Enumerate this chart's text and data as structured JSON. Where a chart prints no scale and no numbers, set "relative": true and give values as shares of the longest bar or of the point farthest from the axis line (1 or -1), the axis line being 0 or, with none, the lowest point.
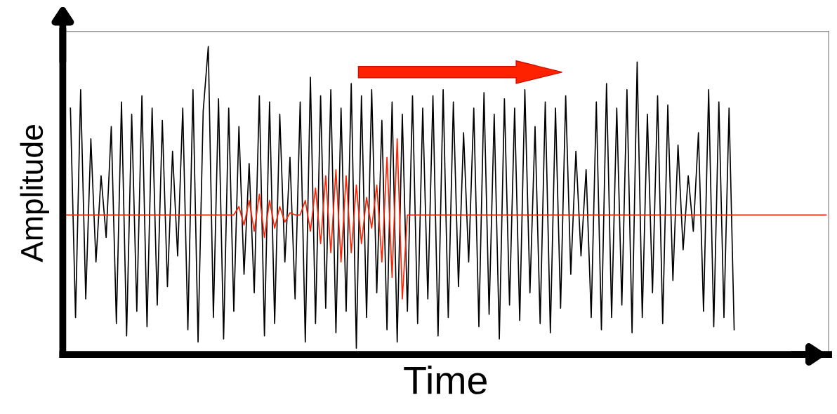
{
  "chart_data": {
    "type": "line",
    "relative": true,
    "xlabel": "Time",
    "ylabel": "Amplitude",
    "categories": [
      null,
      null,
      null,
      null,
      null,
      null,
      null,
      null,
      null,
      null,
      null,
      null,
      null,
      null,
      null,
      null,
      null,
      null,
      null,
      null,
      null,
      null,
      null,
      null,
      null,
      null,
      null,
      null,
      null,
      null,
      null,
      null,
      null,
      null,
      null,
      null,
      null,
      null,
      null,
      null,
      null,
      null,
      null,
      null,
      null,
      null,
      null,
      null,
      null,
      null,
      null,
      null,
      null,
      null,
      null,
      null,
      null,
      null,
      null,
      null,
      null,
      null,
      null,
      null,
      null,
      null,
      null,
      null,
      null,
      null,
      null,
      null,
      null,
      null,
      null,
      null,
      null,
      null,
      null,
      null,
      null,
      null,
      null,
      null,
      null,
      null,
      null,
      null,
      null,
      null,
      null,
      null,
      null,
      null,
      null,
      null,
      null,
      null,
      null,
      null,
      null,
      null,
      null,
      null,
      null,
      null,
      null,
      null,
      null,
      null,
      null,
      null,
      null,
      null,
      null,
      null,
      null,
      null,
      null,
      null,
      null,
      null,
      null,
      null,
      null,
      null,
      null,
      null,
      null,
      null,
      null,
      null,
      null,
      null,
      null,
      null,
      null,
      null,
      null,
      null,
      null,
      null,
      null,
      null,
      null,
      null,
      null,
      null,
      null,
      null
    ],
    "series": [
      {
        "color": "#000000",
        "values": [
          null,
          0.8,
          0.12,
          0.86,
          0.18,
          0.7,
          0.3,
          0.58,
          0.38,
          0.74,
          0.1,
          0.82,
          0.06,
          0.78,
          0.14,
          0.84,
          0.09,
          0.8,
          0.16,
          0.76,
          0.22,
          0.66,
          0.32,
          0.8,
          0.08,
          0.86,
          0.04,
          0.79,
          1.0,
          0.12,
          0.83,
          0.05,
          0.8,
          0.14,
          0.74,
          0.26,
          0.62,
          0.2,
          0.84,
          0.06,
          0.82,
          0.1,
          0.78,
          0.3,
          0.64,
          0.18,
          0.82,
          0.04,
          0.9,
          0.1,
          0.84,
          0.15,
          0.86,
          0.07,
          0.8,
          0.14,
          0.88,
          0.02,
          0.84,
          0.12,
          0.86,
          0.2,
          0.76,
          0.08,
          0.82,
          0.04,
          0.78,
          0.14,
          0.84,
          0.1,
          0.8,
          0.18,
          0.84,
          0.06,
          0.86,
          0.12,
          0.82,
          0.22,
          0.72,
          0.3,
          0.8,
          0.09,
          0.85,
          0.13,
          0.78,
          0.05,
          0.83,
          0.16,
          0.8,
          0.11,
          0.86,
          0.2,
          0.74,
          0.1,
          0.82,
          0.07,
          0.8,
          0.15,
          0.84,
          0.26,
          0.66,
          0.32,
          0.6,
          0.12,
          0.82,
          0.08,
          0.88,
          0.12,
          0.8,
          0.16,
          0.86,
          0.07,
          0.95,
          0.12,
          0.78,
          0.2,
          0.84,
          0.1,
          0.81,
          0.24,
          0.68,
          0.34,
          0.58,
          0.4,
          0.72,
          0.14,
          0.86,
          0.09,
          0.82,
          0.12,
          0.8,
          0.08,
          null,
          null,
          null,
          null,
          null,
          null,
          null,
          null,
          null,
          null,
          null,
          null,
          null,
          null,
          null,
          null,
          null,
          null
        ]
      },
      {
        "color": "#ff2200",
        "values": [
          0.453,
          0.453,
          0.453,
          0.453,
          0.453,
          0.453,
          0.453,
          0.453,
          0.453,
          0.453,
          0.453,
          0.453,
          0.453,
          0.453,
          0.453,
          0.453,
          0.453,
          0.453,
          0.453,
          0.453,
          0.453,
          0.453,
          0.453,
          0.453,
          0.453,
          0.453,
          0.453,
          0.453,
          0.453,
          0.453,
          0.453,
          0.453,
          0.453,
          0.453,
          0.48,
          0.42,
          0.5,
          0.4,
          0.52,
          0.38,
          0.5,
          0.41,
          0.48,
          0.43,
          0.46,
          0.453,
          0.453,
          0.5,
          0.4,
          0.54,
          0.36,
          0.58,
          0.33,
          0.6,
          0.3,
          0.58,
          0.33,
          0.55,
          0.36,
          0.51,
          0.41,
          0.55,
          0.3,
          0.64,
          0.25,
          0.7,
          0.18,
          0.453,
          0.453,
          0.453,
          0.453,
          0.453,
          0.453,
          0.453,
          0.453,
          0.453,
          0.453,
          0.453,
          0.453,
          0.453,
          0.453,
          0.453,
          0.453,
          0.453,
          0.453,
          0.453,
          0.453,
          0.453,
          0.453,
          0.453,
          0.453,
          0.453,
          0.453,
          0.453,
          0.453,
          0.453,
          0.453,
          0.453,
          0.453,
          0.453,
          0.453,
          0.453,
          0.453,
          0.453,
          0.453,
          0.453,
          0.453,
          0.453,
          0.453,
          0.453,
          0.453,
          0.453,
          0.453,
          0.453,
          0.453,
          0.453,
          0.453,
          0.453,
          0.453,
          0.453,
          0.453,
          0.453,
          0.453,
          0.453,
          0.453,
          0.453,
          0.453,
          0.453,
          0.453,
          0.453,
          0.453,
          0.453,
          0.453,
          0.453,
          0.453,
          0.453,
          0.453,
          0.453,
          0.453,
          0.453,
          0.453,
          0.453,
          0.453,
          0.453,
          0.453,
          0.453,
          0.453,
          0.453,
          0.453,
          0.453
        ]
      }
    ]
  }
}
